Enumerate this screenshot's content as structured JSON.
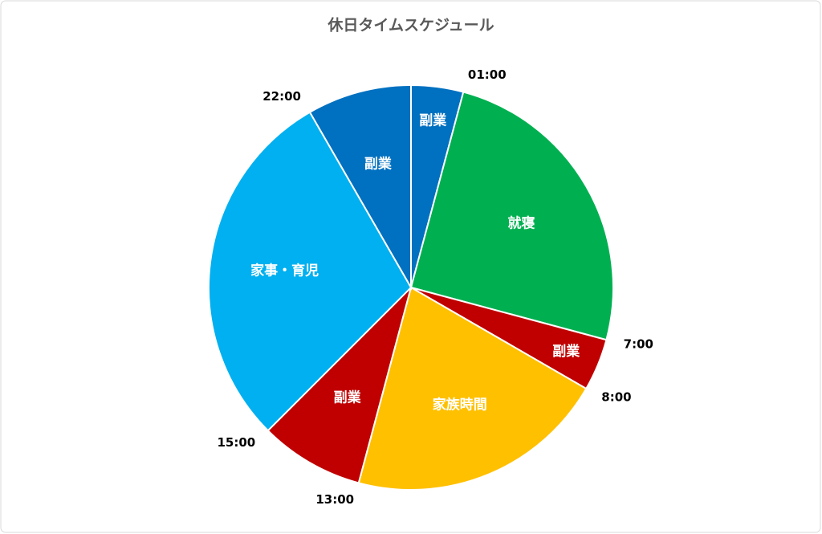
{
  "chart_data": {
    "type": "pie",
    "title": "休日タイムスケジュール",
    "categories": [
      "副業",
      "就寝",
      "副業",
      "家族時間",
      "副業",
      "家事・育児",
      "副業"
    ],
    "values": [
      1,
      6,
      1,
      5,
      2,
      7,
      2
    ],
    "colors": [
      "#0070c0",
      "#00b050",
      "#c00000",
      "#ffc000",
      "#c00000",
      "#00b0f0",
      "#0070c0"
    ],
    "boundary_labels": [
      "01:00",
      "7:00",
      "8:00",
      "13:00",
      "15:00",
      "22:00"
    ]
  }
}
